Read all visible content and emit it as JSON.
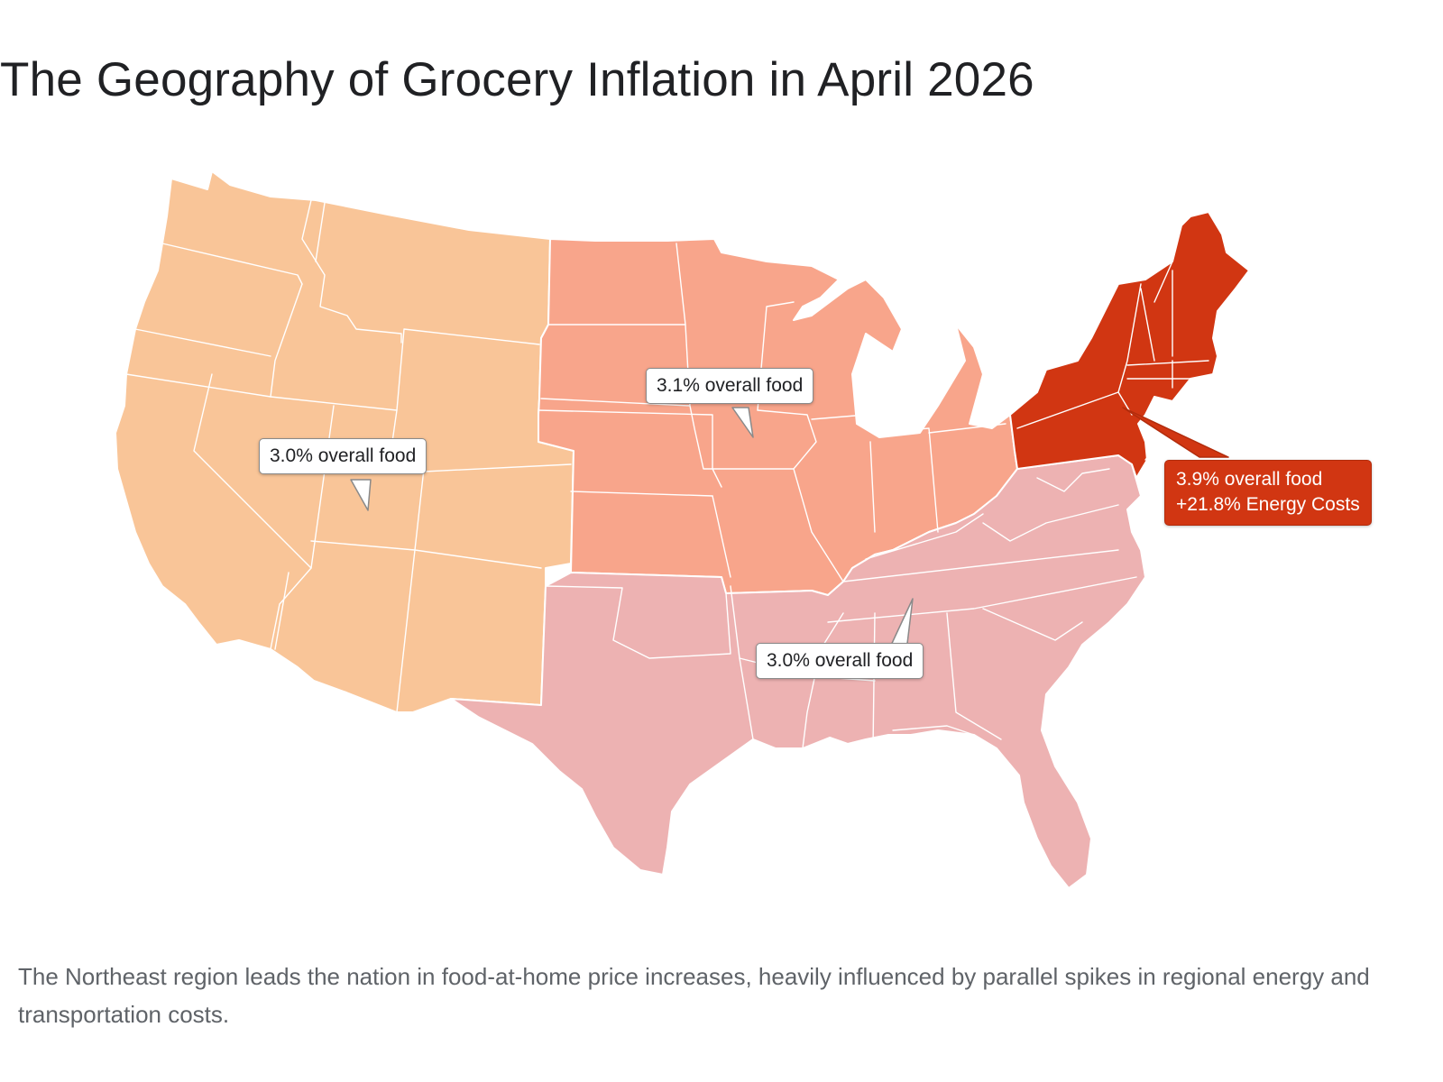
{
  "title": "The Geography of Grocery Inflation in April 2026",
  "colors": {
    "west": "#f9c598",
    "midwest": "#f8a58b",
    "south": "#edb2b2",
    "northeast": "#d13612",
    "callout_border": "#8a8a8a"
  },
  "regions": {
    "west": {
      "label": "3.0% overall food"
    },
    "midwest": {
      "label": "3.1% overall food"
    },
    "south": {
      "label": "3.0% overall food"
    },
    "northeast": {
      "label_line1": "3.9% overall food",
      "label_line2": "+21.8% Energy Costs"
    }
  },
  "caption": "The Northeast region leads the nation in food-at-home price increases, heavily influenced by parallel spikes in regional energy and transportation costs."
}
